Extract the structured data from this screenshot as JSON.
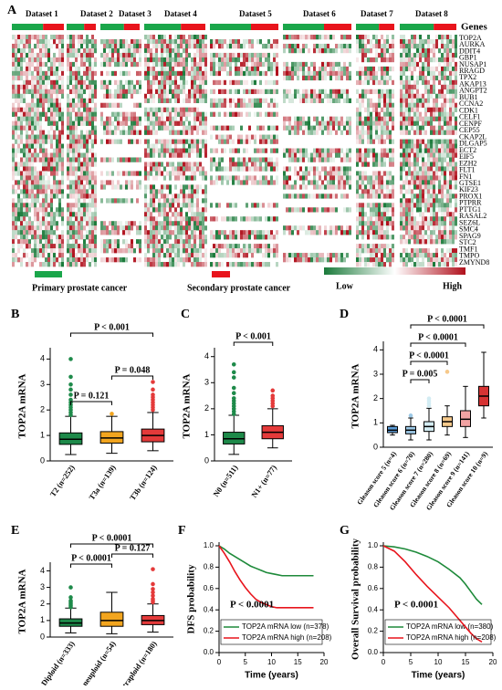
{
  "chart_data": [
    {
      "type": "heatmap",
      "panel": "A",
      "datasets": [
        "Dataset 1",
        "Dataset 2",
        "Dataset 3",
        "Dataset 4",
        "Dataset 5",
        "Dataset 6",
        "Dataset 7",
        "Dataset 8"
      ],
      "genes_header": "Genes",
      "genes": [
        "TOP2A",
        "AURKA",
        "DDIT4",
        "GBP1",
        "NUSAP1",
        "RRAGD",
        "TPX2",
        "AKAP13",
        "ANGPT2",
        "BUB1",
        "CCNA2",
        "CDK1",
        "CELF1",
        "CENPF",
        "CEP55",
        "CKAP2L",
        "DLGAP5",
        "ECT2",
        "EIF5",
        "EZH2",
        "FLT1",
        "FN1",
        "GTSE1",
        "KIF23",
        "PROX1",
        "PTPRR",
        "PTTG1",
        "RASAL2",
        "SEZ6L",
        "SMC4",
        "SPAG9",
        "STC2",
        "TMF1",
        "TMPO",
        "ZMYND8"
      ],
      "legend": {
        "primary": "Primary prostate cancer",
        "secondary": "Secondary prostate cancer",
        "low": "Low",
        "high": "High"
      },
      "colors": {
        "primary": "#1aa64a",
        "secondary": "#e8141c",
        "low": "#1a7a3a",
        "high": "#b0101c"
      }
    },
    {
      "type": "box",
      "panel": "B",
      "ylabel": "TOP2A mRNA",
      "categories": [
        "T2 (n=252)",
        "T3a (n=139)",
        "T3b (n=124)"
      ],
      "colors": [
        "#1e8a4a",
        "#f2a51f",
        "#e43a3a"
      ],
      "boxes": [
        {
          "min": 0.25,
          "q1": 0.65,
          "median": 0.85,
          "q3": 1.1,
          "max": 1.75,
          "outliers": [
            1.8,
            1.9,
            2.0,
            2.1,
            2.2,
            2.3,
            2.4,
            2.6,
            2.8,
            3.0,
            3.3,
            4.0
          ]
        },
        {
          "min": 0.3,
          "q1": 0.7,
          "median": 0.9,
          "q3": 1.15,
          "max": 1.75,
          "outliers": [
            1.85
          ]
        },
        {
          "min": 0.4,
          "q1": 0.75,
          "median": 1.0,
          "q3": 1.25,
          "max": 1.9,
          "outliers": [
            2.0,
            2.1,
            2.2,
            2.3,
            2.4,
            2.5,
            2.6,
            2.8,
            3.1
          ]
        }
      ],
      "annotations": [
        "P < 0.001",
        "P = 0.121",
        "P = 0.048"
      ],
      "ylim": [
        0,
        4.3
      ],
      "yticks": [
        0,
        1,
        2,
        3,
        4
      ]
    },
    {
      "type": "box",
      "panel": "C",
      "ylabel": "TOP2A mRNA",
      "categories": [
        "N0 (n=511)",
        "N1+ (n=77)"
      ],
      "colors": [
        "#1e8a4a",
        "#e43a3a"
      ],
      "boxes": [
        {
          "min": 0.25,
          "q1": 0.65,
          "median": 0.85,
          "q3": 1.1,
          "max": 1.75,
          "outliers": [
            1.8,
            1.9,
            2.0,
            2.1,
            2.2,
            2.3,
            2.4,
            2.6,
            2.8,
            3.2,
            3.4,
            3.7
          ]
        },
        {
          "min": 0.5,
          "q1": 0.85,
          "median": 1.1,
          "q3": 1.35,
          "max": 2.0,
          "outliers": [
            2.1,
            2.2,
            2.3,
            2.4,
            2.5,
            2.7
          ]
        }
      ],
      "annotations": [
        "P < 0.001"
      ],
      "ylim": [
        0,
        4.2
      ],
      "yticks": [
        0,
        1,
        2,
        3,
        4
      ]
    },
    {
      "type": "box",
      "panel": "D",
      "ylabel": "TOP2A mRNA",
      "categories": [
        "Gleason score 5 (n=4)",
        "Gleason score 6 (n=70)",
        "Gleason score 7 (n=280)",
        "Gleason score 8 (n=69)",
        "Gleason score 9 (n=141)",
        "Gleason score 10 (n=9)"
      ],
      "colors": [
        "#5b9bd5",
        "#9cc8e6",
        "#d3ecf3",
        "#f6c98b",
        "#f2a3a3",
        "#d63333"
      ],
      "boxes": [
        {
          "min": 0.5,
          "q1": 0.6,
          "median": 0.7,
          "q3": 0.85,
          "max": 0.9,
          "outliers": []
        },
        {
          "min": 0.3,
          "q1": 0.55,
          "median": 0.7,
          "q3": 0.85,
          "max": 1.2,
          "outliers": [
            1.3
          ]
        },
        {
          "min": 0.3,
          "q1": 0.65,
          "median": 0.85,
          "q3": 1.05,
          "max": 1.6,
          "outliers": [
            1.7,
            1.8,
            1.9,
            2.0
          ]
        },
        {
          "min": 0.5,
          "q1": 0.85,
          "median": 1.05,
          "q3": 1.25,
          "max": 1.7,
          "outliers": [
            3.1
          ]
        },
        {
          "min": 0.4,
          "q1": 0.85,
          "median": 1.15,
          "q3": 1.5,
          "max": 2.5,
          "outliers": []
        },
        {
          "min": 1.2,
          "q1": 1.7,
          "median": 2.1,
          "q3": 2.5,
          "max": 3.9,
          "outliers": []
        }
      ],
      "annotations": [
        "P < 0.0001",
        "P < 0.0001",
        "P < 0.0001",
        "P = 0.005"
      ],
      "ylim": [
        0,
        4.2
      ],
      "yticks": [
        0,
        1,
        2,
        3,
        4
      ]
    },
    {
      "type": "box",
      "panel": "E",
      "ylabel": "TOP2A mRNA",
      "categories": [
        "Diploid (n=333)",
        "Aneuploid (n=54)",
        "Tetraploid (n=180)"
      ],
      "colors": [
        "#1e8a4a",
        "#f2a51f",
        "#e43a3a"
      ],
      "boxes": [
        {
          "min": 0.25,
          "q1": 0.65,
          "median": 0.85,
          "q3": 1.1,
          "max": 1.75,
          "outliers": [
            1.8,
            1.9,
            2.0,
            2.1,
            2.2,
            2.4,
            3.0
          ]
        },
        {
          "min": 0.2,
          "q1": 0.65,
          "median": 1.0,
          "q3": 1.5,
          "max": 2.7,
          "outliers": []
        },
        {
          "min": 0.3,
          "q1": 0.75,
          "median": 1.0,
          "q3": 1.3,
          "max": 2.0,
          "outliers": [
            2.1,
            2.2,
            2.3,
            2.5,
            2.7,
            2.9,
            3.2,
            4.1
          ]
        }
      ],
      "annotations": [
        "P < 0.0001",
        "P < 0.0001",
        "P = 0.127"
      ],
      "ylim": [
        0,
        4.3
      ],
      "yticks": [
        0,
        1,
        2,
        3,
        4
      ]
    },
    {
      "type": "survival",
      "panel": "F",
      "ylabel": "DFS probability",
      "xlabel": "Time (years)",
      "annotation": "P < 0.0001",
      "series": [
        {
          "name": "TOP2A mRNA low  (n=378)",
          "color": "#1e8a3a",
          "x": [
            0,
            1,
            2,
            3,
            4,
            5,
            6,
            7,
            8,
            9,
            10,
            11,
            12,
            14,
            16,
            18
          ],
          "values": [
            1,
            0.97,
            0.93,
            0.9,
            0.87,
            0.84,
            0.81,
            0.79,
            0.77,
            0.75,
            0.74,
            0.73,
            0.72,
            0.72,
            0.72,
            0.72
          ]
        },
        {
          "name": "TOP2A mRNA high  (n=208)",
          "color": "#e8141c",
          "x": [
            0,
            1,
            2,
            3,
            4,
            5,
            6,
            7,
            8,
            9,
            10,
            11,
            12,
            14,
            16,
            18
          ],
          "values": [
            1,
            0.93,
            0.85,
            0.76,
            0.68,
            0.61,
            0.55,
            0.5,
            0.47,
            0.45,
            0.43,
            0.42,
            0.42,
            0.42,
            0.42,
            0.42
          ]
        }
      ],
      "xlim": [
        0,
        20
      ],
      "xticks": [
        0,
        5,
        10,
        15,
        20
      ],
      "ylim": [
        0,
        1
      ],
      "yticks": [
        {
          "value": 0,
          "label": "0.0"
        },
        0.2,
        0.4,
        0.6,
        0.8,
        {
          "value": 1,
          "label": "1.0"
        }
      ]
    },
    {
      "type": "survival",
      "panel": "G",
      "ylabel": "Overall Survival probability",
      "xlabel": "Time (years)",
      "annotation": "P < 0.0001",
      "series": [
        {
          "name": "TOP2A mRNA low  (n=380)",
          "color": "#1e8a3a",
          "x": [
            0,
            2,
            4,
            6,
            8,
            10,
            12,
            14,
            15,
            16,
            17,
            18
          ],
          "values": [
            1,
            0.99,
            0.97,
            0.94,
            0.9,
            0.85,
            0.78,
            0.7,
            0.64,
            0.57,
            0.5,
            0.45
          ]
        },
        {
          "name": "TOP2A mRNA high  (n=208)",
          "color": "#e8141c",
          "x": [
            0,
            2,
            4,
            6,
            8,
            10,
            12,
            14,
            15,
            16,
            17,
            18
          ],
          "values": [
            1,
            0.95,
            0.85,
            0.73,
            0.62,
            0.52,
            0.42,
            0.3,
            0.24,
            0.18,
            0.13,
            0.1
          ]
        }
      ],
      "xlim": [
        0,
        20
      ],
      "xticks": [
        0,
        5,
        10,
        15,
        20
      ],
      "ylim": [
        0,
        1
      ],
      "yticks": [
        {
          "value": 0,
          "label": "0.0"
        },
        0.2,
        0.4,
        0.6,
        0.8,
        {
          "value": 1,
          "label": "1.0"
        }
      ]
    }
  ]
}
